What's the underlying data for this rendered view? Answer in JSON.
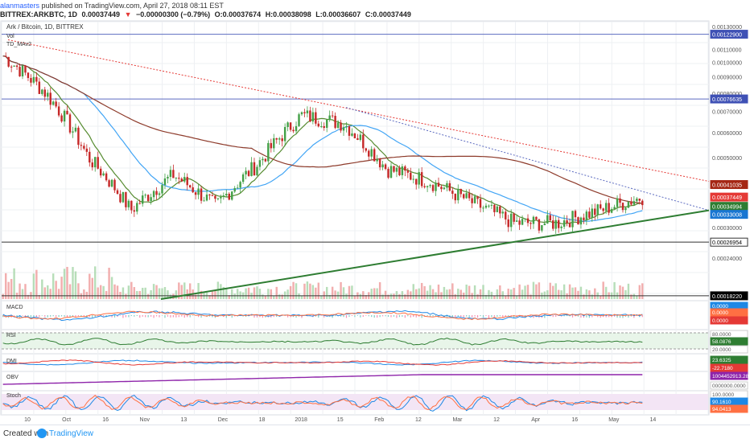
{
  "header": {
    "author": "alanmasters",
    "published_text": "published on TradingView.com, April 27, 2018 08:11 EST",
    "symbol": "BITTREX:ARKBTC, 1D",
    "last": "0.00037449",
    "change": "−0.00000300 (−0.79%)",
    "open": "O:0.00037674",
    "high": "H:0.00038098",
    "low": "L:0.00036607",
    "close": "C:0.00037449"
  },
  "legend": {
    "title": "Ark / Bitcoin, 1D, BITTREX",
    "vol": "Vol",
    "ma": "TD_MAv2"
  },
  "price_axis": [
    "0.00130000",
    "0.00122900",
    "0.00110000",
    "0.00100000",
    "0.00090000",
    "0.00080000",
    "0.00076635",
    "0.00070000",
    "0.00060000",
    "0.00050000",
    "0.00041035",
    "0.00037449",
    "0.00034994",
    "0.00033008",
    "0.00030000",
    "0.00026954",
    "0.00024000",
    "0.00018220"
  ],
  "price_badges": [
    {
      "label": "0.00122900",
      "color": "#3f51b5"
    },
    {
      "label": "0.00076635",
      "color": "#3f51b5"
    },
    {
      "label": "0.00041035",
      "color": "#a52714"
    },
    {
      "label": "0.00037449",
      "color": "#e53935"
    },
    {
      "label": "0.00034994",
      "color": "#2e7d32"
    },
    {
      "label": "0.00033008",
      "color": "#1976d2"
    },
    {
      "label": "0.00026954",
      "color": "#ffffff"
    },
    {
      "label": "0.00018220",
      "color": "#000000"
    }
  ],
  "indicators": {
    "macd": {
      "label": "MACD",
      "values": [
        "0.0000",
        "0.0000",
        "0.0000"
      ]
    },
    "rsi": {
      "label": "RSI",
      "values": [
        "80.0000",
        "58.0876",
        "20.0000"
      ]
    },
    "dmi": {
      "label": "DMI",
      "values": [
        "23.6325",
        "-22.7180"
      ]
    },
    "obv": {
      "label": "OBV",
      "values": [
        "1004452913.2809",
        "0000000.0000"
      ]
    },
    "stoch": {
      "label": "Stoch",
      "values": [
        "100.0000",
        "90.1610",
        "94.0413"
      ]
    }
  },
  "time_axis": [
    "10",
    "Oct",
    "16",
    "Nov",
    "13",
    "Dec",
    "18",
    "2018",
    "15",
    "Feb",
    "12",
    "Mar",
    "12",
    "Apr",
    "16",
    "May",
    "14"
  ],
  "footer": {
    "created": "Created with",
    "brand": "TradingView"
  },
  "chart_data": {
    "type": "line",
    "title": "Ark / Bitcoin, 1D, BITTREX",
    "x": [
      "Sep 10",
      "Oct",
      "Oct 16",
      "Nov",
      "Nov 13",
      "Dec",
      "Dec 18",
      "Jan 2018",
      "Jan 15",
      "Feb",
      "Feb 12",
      "Mar",
      "Mar 12",
      "Apr",
      "Apr 16",
      "Apr 27"
    ],
    "series": [
      {
        "name": "ARKBTC",
        "values": [
          0.00105,
          0.0008,
          0.0005,
          0.00034,
          0.00044,
          0.00035,
          0.00048,
          0.00068,
          0.00064,
          0.00046,
          0.00042,
          0.00036,
          0.00031,
          0.00031,
          0.00034,
          0.00037449
        ]
      }
    ],
    "ylim": [
      0.00018,
      0.0013
    ],
    "horizontal_levels": [
      0.001229,
      0.00076635,
      0.00026954,
      0.0001822
    ],
    "grid": true
  }
}
